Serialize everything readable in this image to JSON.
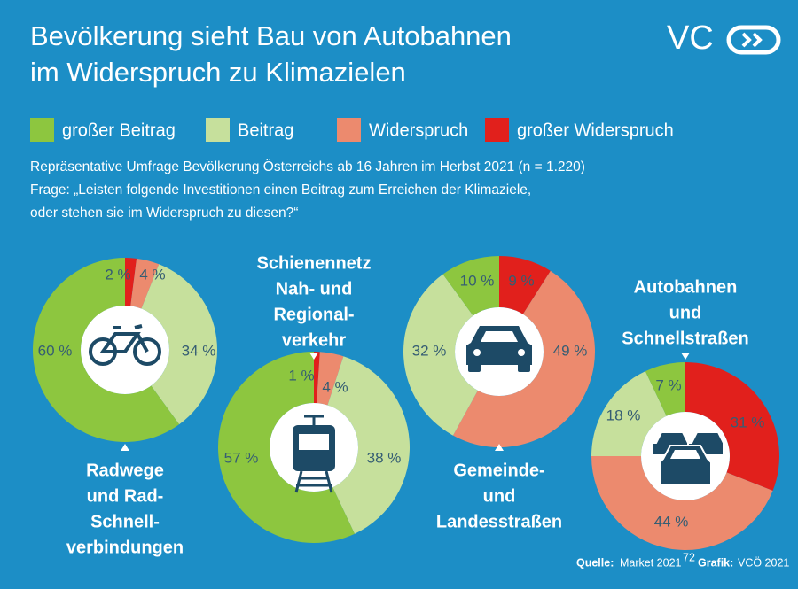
{
  "title": [
    "Bevölkerung sieht Bau von Autobahnen",
    "im Widerspruch zu Klimazielen"
  ],
  "logo": "VC",
  "legend": {
    "names": [
      "großer Beitrag",
      "Beitrag",
      "Widerspruch",
      "großer Widerspruch"
    ],
    "colors": [
      "#8dc63f",
      "#c6e09c",
      "#ec8a6e",
      "#e1201c"
    ]
  },
  "subtitle": [
    "Repräsentative Umfrage Bevölkerung Österreichs ab 16 Jahren im Herbst 2021 (n = 1.220)",
    "Frage: „Leisten folgende Investitionen einen Beitrag zum Erreichen der Klimaziele,",
    "oder stehen sie im Widerspruch zu diesen?“"
  ],
  "chart_data": [
    {
      "type": "pie",
      "title": [
        "Radwege",
        "und Rad-",
        "Schnell-",
        "verbindungen"
      ],
      "values": [
        60,
        34,
        4,
        2
      ],
      "value_labels": [
        "60 %",
        "34 %",
        "4 %",
        "2 %"
      ]
    },
    {
      "type": "pie",
      "title": [
        "Schienennetz",
        "Nah- und",
        "Regional-",
        "verkehr"
      ],
      "values": [
        57,
        38,
        4,
        1
      ],
      "value_labels": [
        "57 %",
        "38 %",
        "4 %",
        "1 %"
      ]
    },
    {
      "type": "pie",
      "title": [
        "Gemeinde-",
        "und",
        "Landesstraßen"
      ],
      "values": [
        10,
        32,
        49,
        9
      ],
      "value_labels": [
        "10 %",
        "32 %",
        "49 %",
        "9 %"
      ]
    },
    {
      "type": "pie",
      "title": [
        "Autobahnen",
        "und",
        "Schnellstraßen"
      ],
      "values": [
        7,
        18,
        44,
        31
      ],
      "value_labels": [
        "7 %",
        "18 %",
        "44 %",
        "31 %"
      ]
    }
  ],
  "source": {
    "label": "Quelle:",
    "text": "Market 2021",
    "note": "72",
    "graphic_label": "Grafik:",
    "graphic": "VCÖ 2021"
  }
}
